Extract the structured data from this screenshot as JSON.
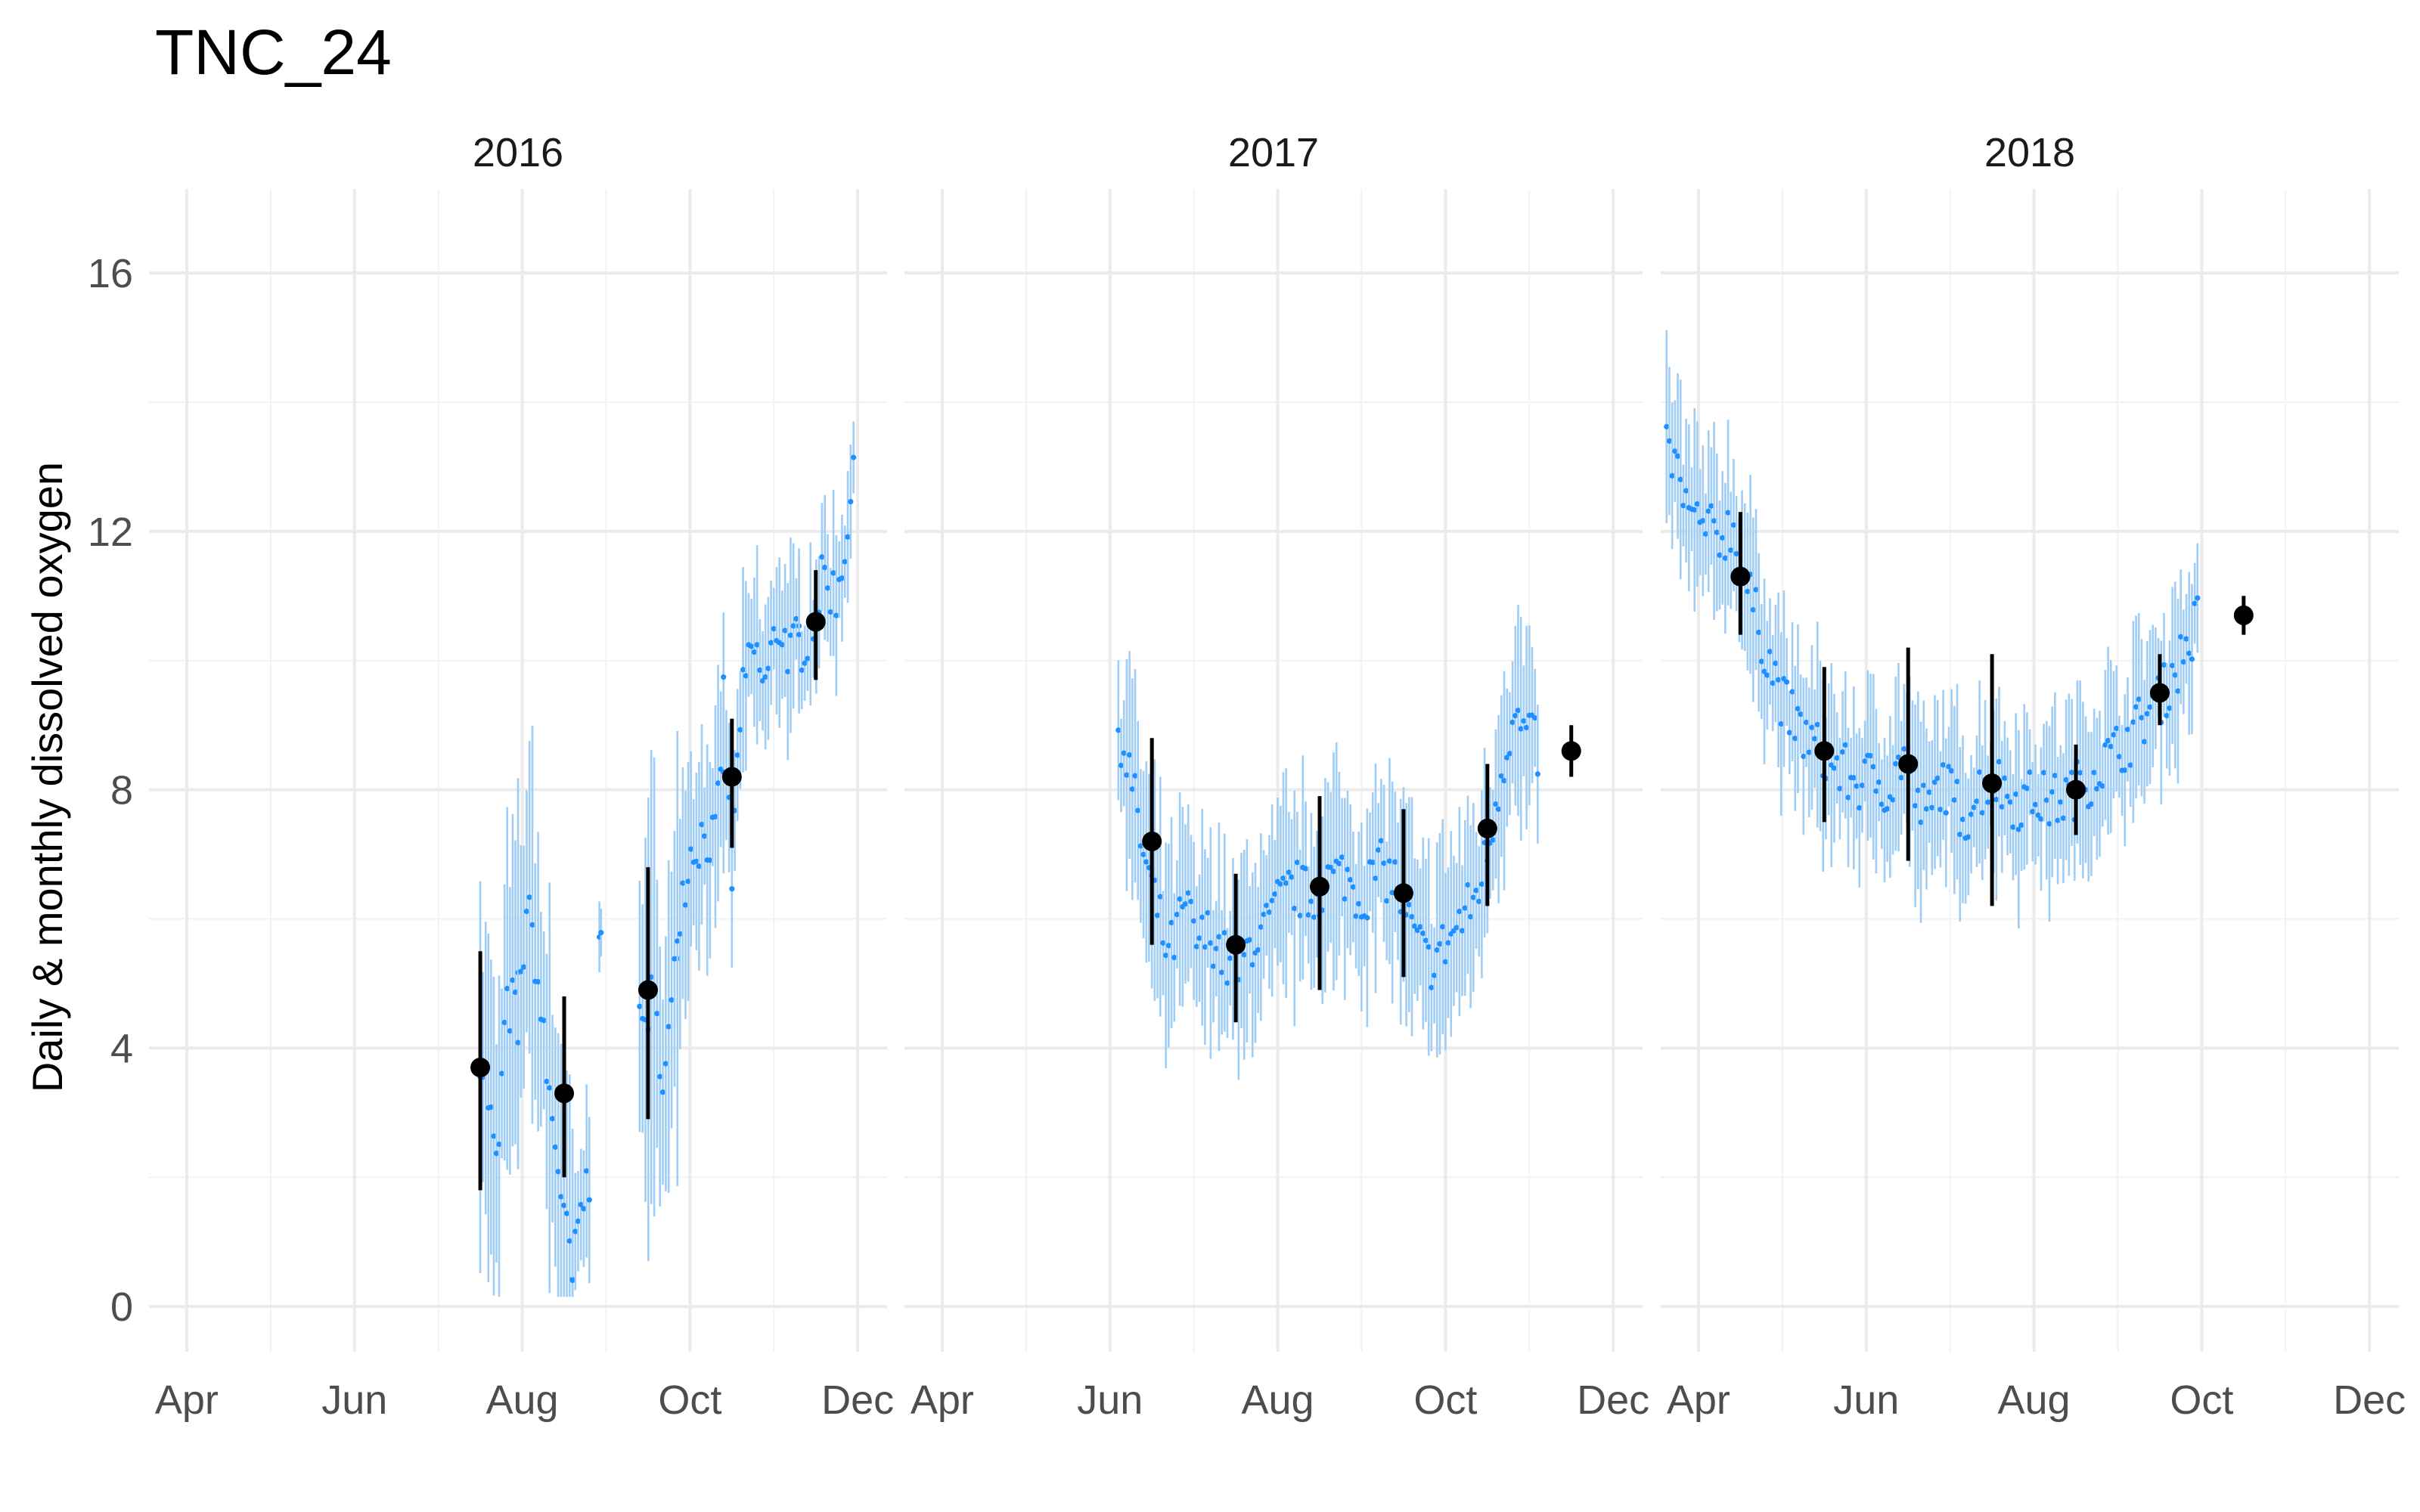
{
  "chart_data": {
    "type": "scatter",
    "title": "TNC_24",
    "ylabel": "Daily & monthly dissolved oxygen",
    "xlabel": "",
    "ylim": [
      -0.7,
      17.3
    ],
    "y_ticks": [
      "0",
      "4",
      "8",
      "12",
      "16"
    ],
    "x_ticks": [
      "Apr",
      "Jun",
      "Aug",
      "Oct",
      "Dec"
    ],
    "x_tick_months": [
      4,
      6,
      8,
      10,
      12
    ],
    "xlim_months": [
      3.55,
      12.35
    ],
    "grid": true,
    "colors": {
      "daily_point": "#1e8fff",
      "daily_range": "#9fcdf5",
      "monthly": "#000000"
    },
    "panels": [
      {
        "label": "2016",
        "monthly": [
          {
            "month": 7.5,
            "mean": 3.7,
            "low": 1.8,
            "high": 5.5
          },
          {
            "month": 8.5,
            "mean": 3.3,
            "low": 2.0,
            "high": 4.8
          },
          {
            "month": 9.5,
            "mean": 4.9,
            "low": 2.9,
            "high": 6.8
          },
          {
            "month": 10.5,
            "mean": 8.2,
            "low": 7.1,
            "high": 9.1
          },
          {
            "month": 11.5,
            "mean": 10.6,
            "low": 9.7,
            "high": 11.4
          }
        ],
        "daily_segments": [
          {
            "start": 7.5,
            "end": 7.95,
            "knots": [
              [
                7.5,
                4.0
              ],
              [
                7.6,
                3.2
              ],
              [
                7.7,
                2.0
              ],
              [
                7.8,
                4.5
              ],
              [
                7.95,
                4.8
              ]
            ],
            "half_range": 2.2
          },
          {
            "start": 7.95,
            "end": 8.6,
            "knots": [
              [
                7.95,
                4.2
              ],
              [
                8.05,
                6.2
              ],
              [
                8.15,
                5.5
              ],
              [
                8.3,
                3.5
              ],
              [
                8.45,
                2.0
              ],
              [
                8.6,
                0.3
              ]
            ],
            "half_range": 2.3
          },
          {
            "start": 8.6,
            "end": 8.8,
            "knots": [
              [
                8.6,
                0.4
              ],
              [
                8.7,
                1.5
              ],
              [
                8.8,
                2.0
              ]
            ],
            "half_range": 1.0
          },
          {
            "start": 8.92,
            "end": 8.94,
            "knots": [
              [
                8.92,
                6.1
              ],
              [
                8.94,
                6.1
              ]
            ],
            "half_range": 0.6
          },
          {
            "start": 9.4,
            "end": 9.85,
            "knots": [
              [
                9.4,
                4.2
              ],
              [
                9.55,
                4.8
              ],
              [
                9.7,
                3.5
              ],
              [
                9.85,
                5.5
              ]
            ],
            "half_range": 2.6
          },
          {
            "start": 9.85,
            "end": 10.4,
            "knots": [
              [
                9.85,
                6.0
              ],
              [
                10.0,
                7.0
              ],
              [
                10.15,
                7.3
              ],
              [
                10.3,
                7.2
              ],
              [
                10.4,
                8.5
              ]
            ],
            "half_range": 1.3
          },
          {
            "start": 10.4,
            "end": 11.3,
            "knots": [
              [
                10.4,
                9.4
              ],
              [
                10.5,
                6.6
              ],
              [
                10.6,
                9.2
              ],
              [
                10.75,
                10.2
              ],
              [
                10.9,
                9.6
              ],
              [
                11.05,
                10.6
              ],
              [
                11.2,
                10.1
              ],
              [
                11.3,
                10.3
              ]
            ],
            "half_range": 1.1
          },
          {
            "start": 11.3,
            "end": 11.95,
            "knots": [
              [
                11.3,
                10.2
              ],
              [
                11.45,
                10.5
              ],
              [
                11.6,
                11.3
              ],
              [
                11.75,
                11.0
              ],
              [
                11.95,
                12.7
              ]
            ],
            "half_range": 0.9
          }
        ]
      },
      {
        "label": "2017",
        "monthly": [
          {
            "month": 6.5,
            "mean": 7.2,
            "low": 5.6,
            "high": 8.8
          },
          {
            "month": 7.5,
            "mean": 5.6,
            "low": 4.4,
            "high": 6.7
          },
          {
            "month": 8.5,
            "mean": 6.5,
            "low": 4.9,
            "high": 7.9
          },
          {
            "month": 9.5,
            "mean": 6.4,
            "low": 5.1,
            "high": 7.7
          },
          {
            "month": 10.5,
            "mean": 7.4,
            "low": 6.2,
            "high": 8.4
          },
          {
            "month": 11.5,
            "mean": 8.6,
            "low": 8.2,
            "high": 9.0
          }
        ],
        "daily_segments": [
          {
            "start": 6.1,
            "end": 11.1,
            "knots": [
              [
                6.1,
                9.0
              ],
              [
                6.25,
                8.2
              ],
              [
                6.4,
                7.0
              ],
              [
                6.55,
                6.2
              ],
              [
                6.7,
                5.4
              ],
              [
                6.9,
                6.2
              ],
              [
                7.05,
                5.6
              ],
              [
                7.2,
                5.8
              ],
              [
                7.4,
                5.3
              ],
              [
                7.55,
                5.2
              ],
              [
                7.7,
                5.7
              ],
              [
                7.85,
                5.8
              ],
              [
                8.0,
                6.2
              ],
              [
                8.2,
                6.5
              ],
              [
                8.4,
                6.3
              ],
              [
                8.6,
                6.6
              ],
              [
                8.8,
                6.7
              ],
              [
                9.0,
                6.3
              ],
              [
                9.2,
                6.8
              ],
              [
                9.4,
                6.6
              ],
              [
                9.6,
                5.8
              ],
              [
                9.8,
                5.3
              ],
              [
                10.0,
                5.6
              ],
              [
                10.2,
                6.0
              ],
              [
                10.35,
                6.3
              ],
              [
                10.5,
                7.0
              ],
              [
                10.65,
                8.2
              ],
              [
                10.8,
                9.1
              ],
              [
                11.0,
                8.8
              ],
              [
                11.1,
                8.6
              ]
            ],
            "half_range": 1.3
          }
        ]
      },
      {
        "label": "2018",
        "monthly": [
          {
            "month": 4.5,
            "mean": 11.3,
            "low": 10.4,
            "high": 12.3
          },
          {
            "month": 5.5,
            "mean": 8.6,
            "low": 7.5,
            "high": 9.9
          },
          {
            "month": 6.5,
            "mean": 8.4,
            "low": 6.9,
            "high": 10.2
          },
          {
            "month": 7.5,
            "mean": 8.1,
            "low": 6.2,
            "high": 10.1
          },
          {
            "month": 8.5,
            "mean": 8.0,
            "low": 7.3,
            "high": 8.7
          },
          {
            "month": 9.5,
            "mean": 9.5,
            "low": 9.0,
            "high": 10.1
          },
          {
            "month": 10.5,
            "mean": 10.7,
            "low": 10.4,
            "high": 11.0
          }
        ],
        "daily_segments": [
          {
            "start": 3.62,
            "end": 9.95,
            "knots": [
              [
                3.62,
                13.3
              ],
              [
                3.75,
                12.9
              ],
              [
                3.9,
                12.2
              ],
              [
                4.1,
                12.0
              ],
              [
                4.25,
                11.9
              ],
              [
                4.4,
                12.1
              ],
              [
                4.55,
                11.3
              ],
              [
                4.7,
                10.6
              ],
              [
                4.85,
                10.0
              ],
              [
                5.0,
                9.4
              ],
              [
                5.15,
                9.0
              ],
              [
                5.3,
                8.8
              ],
              [
                5.5,
                8.5
              ],
              [
                5.7,
                8.3
              ],
              [
                5.9,
                8.1
              ],
              [
                6.1,
                8.2
              ],
              [
                6.3,
                8.0
              ],
              [
                6.45,
                8.6
              ],
              [
                6.6,
                7.8
              ],
              [
                6.75,
                7.6
              ],
              [
                6.9,
                8.2
              ],
              [
                7.05,
                7.8
              ],
              [
                7.2,
                7.6
              ],
              [
                7.35,
                8.0
              ],
              [
                7.5,
                8.2
              ],
              [
                7.65,
                8.0
              ],
              [
                7.8,
                7.8
              ],
              [
                8.0,
                7.9
              ],
              [
                8.2,
                7.8
              ],
              [
                8.4,
                7.9
              ],
              [
                8.6,
                8.1
              ],
              [
                8.8,
                8.4
              ],
              [
                9.0,
                8.6
              ],
              [
                9.2,
                8.9
              ],
              [
                9.4,
                9.3
              ],
              [
                9.55,
                9.5
              ],
              [
                9.7,
                9.9
              ],
              [
                9.85,
                10.3
              ],
              [
                9.95,
                10.6
              ]
            ],
            "half_range": 1.1
          }
        ]
      }
    ]
  }
}
